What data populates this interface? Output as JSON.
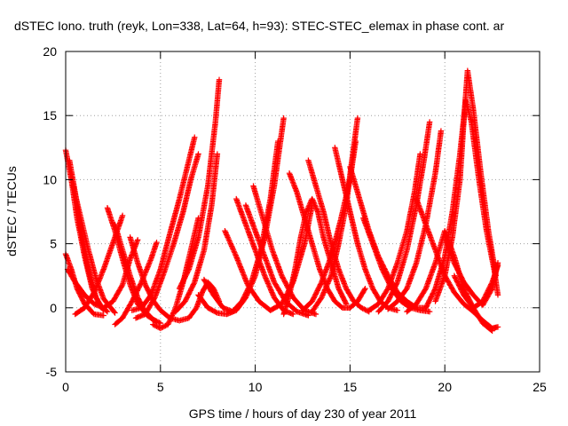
{
  "chart_data": {
    "type": "scatter",
    "title": "dSTEC Iono. truth (reyk, Lon=338, Lat=64, h=93): STEC-STEC_elemax in phase cont. ar",
    "xlabel": "GPS time / hours of day 230 of year 2011",
    "ylabel": "dSTEC  / TECUs",
    "xlim": [
      0,
      25
    ],
    "ylim": [
      -5,
      20
    ],
    "x_ticks": [
      0,
      5,
      10,
      15,
      20,
      25
    ],
    "y_ticks": [
      -5,
      0,
      5,
      10,
      15,
      20
    ],
    "grid": true,
    "marker": "+",
    "color": "#ff0000",
    "series": [
      {
        "x": [
          0.0,
          0.3,
          0.6,
          1.0,
          1.4,
          1.8,
          2.2
        ],
        "y": [
          12.3,
          10.0,
          7.0,
          4.0,
          1.5,
          0.2,
          -0.3
        ]
      },
      {
        "x": [
          0.2,
          0.5,
          0.8,
          1.2,
          1.6,
          2.0
        ],
        "y": [
          11.5,
          9.0,
          6.0,
          3.0,
          0.8,
          -0.2
        ]
      },
      {
        "x": [
          0.0,
          0.3,
          0.6,
          1.0,
          1.5,
          2.0
        ],
        "y": [
          4.2,
          3.0,
          1.5,
          0.3,
          -0.5,
          -0.6
        ]
      },
      {
        "x": [
          0.4,
          0.8,
          1.2,
          1.6,
          2.0,
          2.6
        ],
        "y": [
          9.5,
          7.0,
          4.5,
          2.3,
          0.7,
          -0.4
        ]
      },
      {
        "x": [
          0.1,
          0.5,
          1.0,
          1.5,
          2.0,
          2.5,
          3.0,
          3.4,
          3.8
        ],
        "y": [
          3.0,
          2.0,
          1.0,
          0.3,
          0.0,
          0.5,
          1.8,
          3.8,
          5.3
        ]
      },
      {
        "x": [
          0.5,
          1.0,
          1.5,
          2.0,
          2.6,
          3.0
        ],
        "y": [
          -0.5,
          0.0,
          1.2,
          3.0,
          5.5,
          7.2
        ]
      },
      {
        "x": [
          2.2,
          2.6,
          3.0,
          3.4,
          3.8,
          4.3,
          4.8
        ],
        "y": [
          7.8,
          6.0,
          3.8,
          1.8,
          0.3,
          -0.6,
          -1.1
        ]
      },
      {
        "x": [
          2.6,
          3.0,
          3.4,
          3.8,
          4.2,
          4.6,
          5.0
        ],
        "y": [
          6.5,
          4.5,
          2.5,
          0.8,
          -0.3,
          -0.9,
          -1.2
        ]
      },
      {
        "x": [
          2.6,
          3.0,
          3.5,
          4.0,
          4.5,
          4.8
        ],
        "y": [
          -1.3,
          -0.8,
          0.5,
          2.0,
          3.8,
          5.1
        ]
      },
      {
        "x": [
          3.4,
          3.8,
          4.2,
          4.6,
          5.0,
          5.5,
          6.0,
          6.5,
          6.9,
          7.2,
          7.5,
          7.8,
          8.1
        ],
        "y": [
          5.5,
          3.5,
          1.8,
          0.6,
          -0.2,
          -0.8,
          -1.0,
          -0.8,
          0.0,
          1.2,
          2.0,
          1.5,
          0.5
        ]
      },
      {
        "x": [
          4.6,
          5.0,
          5.4,
          5.8,
          6.2,
          6.6,
          7.0
        ],
        "y": [
          -1.3,
          -1.6,
          -1.3,
          0.0,
          2.0,
          4.5,
          7.0
        ]
      },
      {
        "x": [
          3.7,
          4.2,
          4.7,
          5.2,
          5.7,
          6.2,
          6.6,
          7.0
        ],
        "y": [
          -0.8,
          -0.5,
          0.8,
          2.8,
          5.0,
          7.5,
          10.0,
          12.0
        ]
      },
      {
        "x": [
          3.5,
          4.0,
          4.5,
          5.0,
          5.5,
          6.0,
          6.5,
          6.8
        ],
        "y": [
          -0.2,
          0.0,
          1.0,
          3.0,
          5.8,
          8.5,
          11.5,
          13.3
        ]
      },
      {
        "x": [
          6.0,
          6.5,
          7.0,
          7.5,
          7.9,
          8.1
        ],
        "y": [
          1.5,
          3.0,
          5.5,
          9.5,
          14.5,
          17.8
        ]
      },
      {
        "x": [
          5.8,
          6.3,
          6.8,
          7.3,
          7.7,
          8.0
        ],
        "y": [
          -0.3,
          0.5,
          2.0,
          4.5,
          8.0,
          12.0
        ]
      },
      {
        "x": [
          7.0,
          7.5,
          8.0,
          8.5,
          9.0,
          9.5,
          10.0,
          10.5,
          11.0,
          11.5
        ],
        "y": [
          1.0,
          0.0,
          -0.4,
          -0.5,
          -0.2,
          0.8,
          2.5,
          5.5,
          9.5,
          14.8
        ]
      },
      {
        "x": [
          7.3,
          7.8,
          8.3,
          8.8,
          9.3,
          9.8,
          10.3,
          10.8,
          11.2
        ],
        "y": [
          2.2,
          1.0,
          0.0,
          -0.3,
          0.5,
          2.0,
          4.5,
          8.5,
          13.0
        ]
      },
      {
        "x": [
          8.4,
          9.0,
          9.6,
          10.2,
          10.8,
          11.4,
          12.0,
          12.6,
          13.0
        ],
        "y": [
          6.0,
          4.0,
          1.8,
          0.5,
          -0.2,
          0.3,
          2.0,
          5.0,
          8.0
        ]
      },
      {
        "x": [
          9.0,
          9.5,
          10.0,
          10.5,
          11.0,
          11.5,
          12.0
        ],
        "y": [
          8.5,
          6.5,
          4.5,
          2.5,
          0.8,
          -0.2,
          -0.5
        ]
      },
      {
        "x": [
          9.5,
          10.0,
          10.5,
          11.0,
          11.6,
          12.2,
          12.8
        ],
        "y": [
          8.0,
          6.0,
          4.0,
          2.0,
          0.5,
          -0.3,
          -0.6
        ]
      },
      {
        "x": [
          9.9,
          10.4,
          10.9,
          11.4,
          12.0,
          12.6,
          13.2
        ],
        "y": [
          9.5,
          7.0,
          4.5,
          2.5,
          0.8,
          -0.2,
          -0.5
        ]
      },
      {
        "x": [
          11.5,
          11.8,
          12.1,
          12.4,
          12.7,
          13.0,
          13.3,
          13.6,
          14.0,
          14.4,
          14.8
        ],
        "y": [
          -0.5,
          1.0,
          3.0,
          5.5,
          7.5,
          8.5,
          7.5,
          5.5,
          3.5,
          1.5,
          0.3
        ]
      },
      {
        "x": [
          11.8,
          12.2,
          12.6,
          13.0,
          13.4,
          13.8,
          14.2,
          14.6,
          15.0,
          15.4,
          15.8
        ],
        "y": [
          10.5,
          9.0,
          7.0,
          5.0,
          3.0,
          1.5,
          0.5,
          0.0,
          0.0,
          0.5,
          1.5
        ]
      },
      {
        "x": [
          12.8,
          13.2,
          13.6,
          14.0,
          14.4,
          14.8,
          15.2,
          15.6,
          16.0
        ],
        "y": [
          11.5,
          9.5,
          7.5,
          5.0,
          3.0,
          1.5,
          0.5,
          0.0,
          -0.3
        ]
      },
      {
        "x": [
          13.0,
          13.5,
          14.0,
          14.4,
          14.8,
          15.1,
          15.4
        ],
        "y": [
          -0.3,
          0.8,
          2.5,
          5.0,
          8.0,
          11.5,
          14.8
        ]
      },
      {
        "x": [
          12.5,
          13.0,
          13.5,
          14.0,
          14.5,
          15.0,
          15.3
        ],
        "y": [
          -0.2,
          0.5,
          2.0,
          4.0,
          6.8,
          10.0,
          13.0
        ]
      },
      {
        "x": [
          14.2,
          14.6,
          15.0,
          15.4,
          15.8,
          16.2,
          16.6,
          17.0,
          17.5
        ],
        "y": [
          12.5,
          10.0,
          7.5,
          5.0,
          3.0,
          1.5,
          0.5,
          0.0,
          -0.2
        ]
      },
      {
        "x": [
          15.0,
          15.5,
          16.0,
          16.5,
          17.0,
          17.5,
          18.0,
          18.5,
          19.0
        ],
        "y": [
          11.0,
          8.5,
          6.0,
          4.0,
          2.5,
          1.2,
          0.5,
          0.0,
          0.0
        ]
      },
      {
        "x": [
          15.7,
          16.2,
          16.7,
          17.2,
          17.7,
          18.2,
          18.7,
          19.2
        ],
        "y": [
          7.0,
          5.0,
          3.0,
          1.5,
          0.5,
          0.0,
          -0.2,
          -0.3
        ]
      },
      {
        "x": [
          16.5,
          17.0,
          17.5,
          18.0,
          18.5,
          18.9,
          19.2
        ],
        "y": [
          -0.3,
          0.5,
          2.0,
          4.5,
          8.0,
          11.5,
          14.5
        ]
      },
      {
        "x": [
          16.0,
          16.5,
          17.0,
          17.5,
          18.0,
          18.4,
          18.7
        ],
        "y": [
          -0.2,
          0.3,
          1.5,
          3.5,
          6.0,
          9.0,
          12.0
        ]
      },
      {
        "x": [
          17.0,
          17.5,
          18.0,
          18.5,
          19.0,
          19.5,
          19.8
        ],
        "y": [
          -0.1,
          0.5,
          1.5,
          3.5,
          6.5,
          10.5,
          13.8
        ]
      },
      {
        "x": [
          18.0,
          18.5,
          19.0,
          19.5,
          20.0,
          20.5,
          21.0,
          21.5,
          22.0,
          22.5
        ],
        "y": [
          -0.3,
          0.3,
          1.5,
          3.5,
          6.0,
          4.0,
          1.5,
          0.0,
          -1.2,
          -1.8
        ]
      },
      {
        "x": [
          18.5,
          19.0,
          19.5,
          20.0,
          20.5,
          21.0,
          21.5,
          22.0,
          22.5,
          22.8
        ],
        "y": [
          8.5,
          6.5,
          4.5,
          2.5,
          1.2,
          0.3,
          -0.3,
          -1.0,
          -1.6,
          -1.5
        ]
      },
      {
        "x": [
          19.0,
          19.5,
          20.0,
          20.4,
          20.8,
          21.1,
          21.4,
          21.8,
          22.2,
          22.6,
          22.8
        ],
        "y": [
          0.0,
          1.5,
          4.0,
          7.5,
          12.0,
          16.2,
          14.5,
          10.0,
          6.0,
          3.0,
          1.0
        ]
      },
      {
        "x": [
          19.5,
          20.0,
          20.4,
          20.8,
          21.0,
          21.2,
          21.5,
          21.9,
          22.3,
          22.7
        ],
        "y": [
          0.5,
          2.5,
          5.5,
          10.0,
          14.5,
          18.5,
          15.5,
          10.5,
          6.0,
          2.5
        ]
      },
      {
        "x": [
          20.0,
          20.5,
          21.0,
          21.5,
          22.0,
          22.5,
          22.8
        ],
        "y": [
          5.5,
          3.5,
          2.0,
          1.0,
          0.2,
          1.5,
          3.5
        ]
      },
      {
        "x": [
          20.5,
          21.0,
          21.5,
          22.0,
          22.5,
          22.8
        ],
        "y": [
          2.5,
          1.0,
          0.0,
          0.5,
          2.0,
          3.3
        ]
      }
    ]
  }
}
